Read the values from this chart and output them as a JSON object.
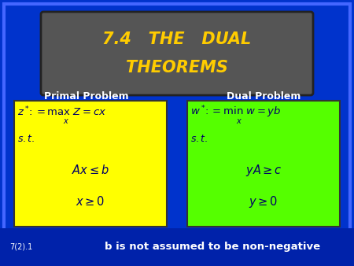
{
  "bg_color": "#0033cc",
  "title_box_color": "#555555",
  "title_line1": "7.4   THE   DUAL",
  "title_line2": "THEOREMS",
  "title_color": "#ffcc00",
  "primal_label": "Primal Problem",
  "dual_label": "Dual Problem",
  "label_color": "#ffffff",
  "primal_bg": "#ffff00",
  "dual_bg": "#55ff00",
  "math_color": "#000066",
  "footer_left": "7(2).1",
  "footer_right": "b is not assumed to be non-negative",
  "footer_color": "#ffffff",
  "outer_border_color": "#003399",
  "inner_border_color": "#6699ff"
}
